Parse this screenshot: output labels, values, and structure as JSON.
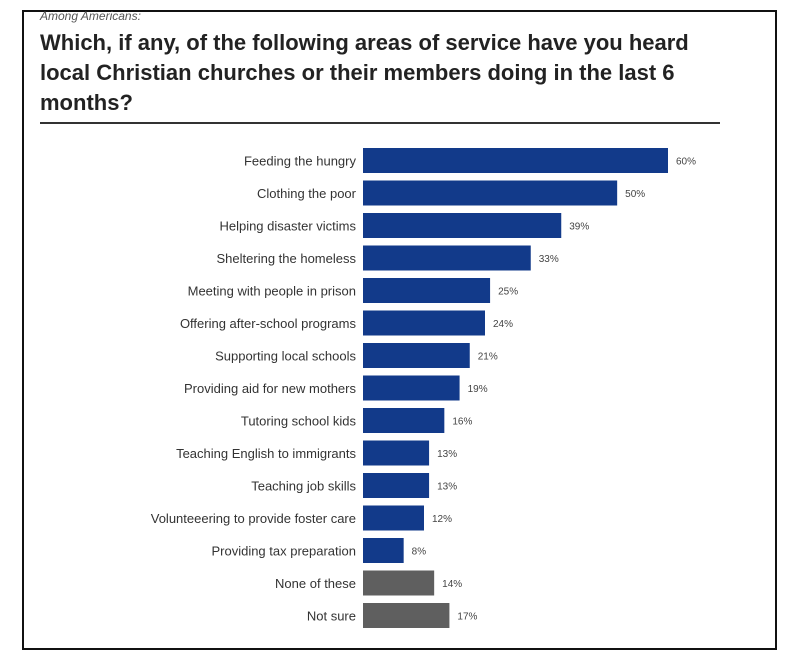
{
  "kicker": "Among Americans:",
  "title": "Which, if any, of the following areas of service have you heard local Christian churches or their members doing in the last 6 months?",
  "colors": {
    "bar": "#123a8a",
    "bar_other": "#5f5f5f"
  },
  "chart_data": {
    "type": "bar",
    "orientation": "horizontal",
    "categories": [
      "Feeding the hungry",
      "Clothing the poor",
      "Helping disaster victims",
      "Sheltering the homeless",
      "Meeting with people in prison",
      "Offering after-school programs",
      "Supporting local schools",
      "Providing aid for new mothers",
      "Tutoring school kids",
      "Teaching English to immigrants",
      "Teaching job skills",
      "Volunteeering to provide foster care",
      "Providing tax preparation",
      "None of these",
      "Not sure"
    ],
    "values": [
      60,
      50,
      39,
      33,
      25,
      24,
      21,
      19,
      16,
      13,
      13,
      12,
      8,
      14,
      17
    ],
    "labels": [
      "60%",
      "50%",
      "39%",
      "33%",
      "25%",
      "24%",
      "21%",
      "19%",
      "16%",
      "13%",
      "13%",
      "12%",
      "8%",
      "14%",
      "17%"
    ],
    "bar_colors": [
      "#123a8a",
      "#123a8a",
      "#123a8a",
      "#123a8a",
      "#123a8a",
      "#123a8a",
      "#123a8a",
      "#123a8a",
      "#123a8a",
      "#123a8a",
      "#123a8a",
      "#123a8a",
      "#123a8a",
      "#5f5f5f",
      "#5f5f5f"
    ],
    "xlim": [
      0,
      60
    ],
    "grid": false,
    "legend": "none"
  }
}
